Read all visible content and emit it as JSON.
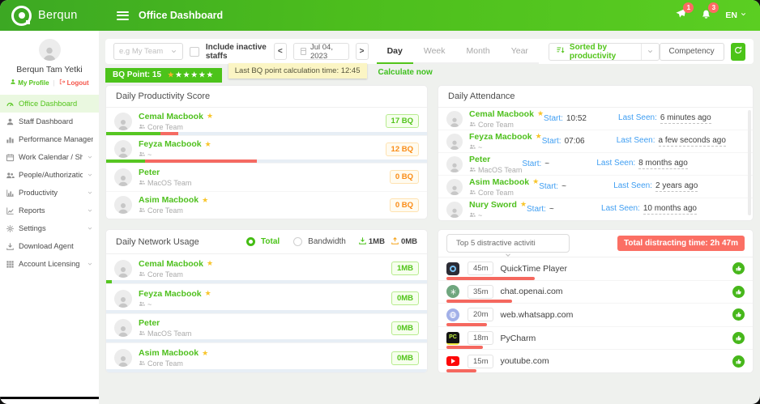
{
  "header": {
    "brand": "Berqun",
    "title": "Office Dashboard",
    "send_badge": "1",
    "bell_badge": "3",
    "lang": "EN"
  },
  "sidebar": {
    "user_name": "Berqun Tam Yetki",
    "my_profile_label": "My Profile",
    "logout_label": "Logout",
    "items": [
      {
        "label": "Office Dashboard",
        "icon": "dashboard",
        "active": true,
        "expandable": false
      },
      {
        "label": "Staff Dashboard",
        "icon": "person",
        "active": false,
        "expandable": false
      },
      {
        "label": "Performance Management",
        "icon": "chart-bars",
        "active": false,
        "expandable": false
      },
      {
        "label": "Work Calendar / Shifts",
        "icon": "calendar",
        "active": false,
        "expandable": true
      },
      {
        "label": "People/Authorization",
        "icon": "people",
        "active": false,
        "expandable": true
      },
      {
        "label": "Productivity",
        "icon": "chart-column",
        "active": false,
        "expandable": true
      },
      {
        "label": "Reports",
        "icon": "chart-line",
        "active": false,
        "expandable": true
      },
      {
        "label": "Settings",
        "icon": "gear",
        "active": false,
        "expandable": true
      },
      {
        "label": "Download Agent",
        "icon": "download",
        "active": false,
        "expandable": false
      },
      {
        "label": "Account Licensing",
        "icon": "grid",
        "active": false,
        "expandable": true
      }
    ]
  },
  "filters": {
    "team_placeholder": "e.g My Team",
    "include_inactive_label": "Include inactive staffs",
    "date": "Jul 04, 2023",
    "prev": "<",
    "next": ">",
    "tabs": [
      "Day",
      "Week",
      "Month",
      "Year"
    ],
    "active_tab": "Day",
    "sort_label": "Sorted by productivity",
    "competency_label": "Competency"
  },
  "bq": {
    "badge_label": "BQ Point: 15",
    "stars_total": 6,
    "stars_filled": 1,
    "tooltip": "Last BQ point calculation time: 12:45",
    "calculate_label": "Calculate now"
  },
  "productivity": {
    "title": "Daily Productivity Score",
    "rows": [
      {
        "name": "Cemal Macbook",
        "starred": true,
        "team": "Core Team",
        "score": "17 BQ",
        "tone": "green",
        "bar_green": 17,
        "bar_red": 5.5
      },
      {
        "name": "Feyza Macbook",
        "starred": true,
        "team": "~",
        "score": "12 BQ",
        "tone": "orange",
        "bar_green": 12,
        "bar_red": 35
      },
      {
        "name": "Peter",
        "starred": false,
        "team": "MacOS Team",
        "score": "0 BQ",
        "tone": "orange",
        "bar_green": 0,
        "bar_red": 0
      },
      {
        "name": "Asim Macbook",
        "starred": true,
        "team": "Core Team",
        "score": "0 BQ",
        "tone": "orange",
        "bar_green": 0,
        "bar_red": 0
      }
    ]
  },
  "attendance": {
    "title": "Daily Attendance",
    "start_label": "Start:",
    "last_seen_label": "Last Seen:",
    "rows": [
      {
        "name": "Cemal Macbook",
        "starred": true,
        "team": "Core Team",
        "start": "10:52",
        "last_seen": "6 minutes ago"
      },
      {
        "name": "Feyza Macbook",
        "starred": true,
        "team": "~",
        "start": "07:06",
        "last_seen": "a few seconds ago"
      },
      {
        "name": "Peter",
        "starred": false,
        "team": "MacOS Team",
        "start": "~",
        "last_seen": "8 months ago"
      },
      {
        "name": "Asim Macbook",
        "starred": true,
        "team": "Core Team",
        "start": "~",
        "last_seen": "2 years ago"
      },
      {
        "name": "Nury Sword",
        "starred": true,
        "team": "~",
        "start": "~",
        "last_seen": "10 months ago"
      }
    ]
  },
  "network": {
    "title": "Daily Network Usage",
    "radio_total": "Total",
    "radio_bandwidth": "Bandwidth",
    "download_total": "1MB",
    "upload_total": "0MB",
    "rows": [
      {
        "name": "Cemal Macbook",
        "starred": true,
        "team": "Core Team",
        "value": "1MB",
        "bar_green": 1.8
      },
      {
        "name": "Feyza Macbook",
        "starred": true,
        "team": "~",
        "value": "0MB",
        "bar_green": 0
      },
      {
        "name": "Peter",
        "starred": false,
        "team": "MacOS Team",
        "value": "0MB",
        "bar_green": 0
      },
      {
        "name": "Asim Macbook",
        "starred": true,
        "team": "Core Team",
        "value": "0MB",
        "bar_green": 0
      }
    ]
  },
  "distractive": {
    "select_label": "Top 5 distractive activiti",
    "total_badge": "Total distracting time: 2h 47m",
    "rows": [
      {
        "app": "QuickTime Player",
        "time": "45m",
        "icon": "quicktime",
        "bar": 28
      },
      {
        "app": "chat.openai.com",
        "time": "35m",
        "icon": "chatgpt",
        "bar": 21
      },
      {
        "app": "web.whatsapp.com",
        "time": "20m",
        "icon": "whatsapp",
        "bar": 13
      },
      {
        "app": "PyCharm",
        "time": "18m",
        "icon": "pycharm",
        "bar": 11.5
      },
      {
        "app": "youtube.com",
        "time": "15m",
        "icon": "youtube",
        "bar": 9.5
      }
    ]
  }
}
